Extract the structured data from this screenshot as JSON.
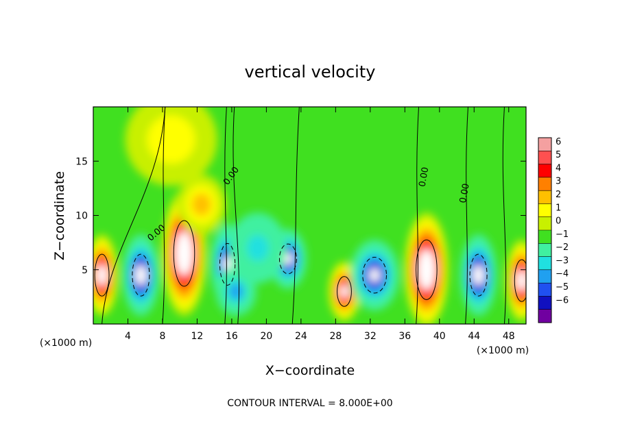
{
  "chart_data": {
    "type": "heatmap",
    "title": "vertical velocity",
    "xlabel": "X−coordinate",
    "ylabel": "Z−coordinate",
    "x_unit_left": "(×1000 m)",
    "x_unit_right": "(×1000 m)",
    "xlim": [
      0,
      50
    ],
    "ylim": [
      0,
      20
    ],
    "x_ticks": [
      4,
      8,
      12,
      16,
      20,
      24,
      28,
      32,
      36,
      40,
      44,
      48
    ],
    "y_ticks": [
      5,
      10,
      15
    ],
    "colorbar": {
      "ticks": [
        6,
        5,
        4,
        3,
        2,
        1,
        0,
        -1,
        -2,
        -3,
        -4,
        -5,
        -6
      ],
      "tick_labels": [
        "6",
        "5",
        "4",
        "3",
        "2",
        "1",
        "0",
        "−1",
        "−2",
        "−3",
        "−4",
        "−5",
        "−6"
      ],
      "colors": [
        "#f4a0a0",
        "#ff5050",
        "#ff0000",
        "#ff8000",
        "#ffc000",
        "#ffff00",
        "#c8f000",
        "#40e020",
        "#40f0a0",
        "#20e0e0",
        "#20a0f0",
        "#2050f0",
        "#1010c0",
        "#7000a0"
      ]
    },
    "contour_labels": [
      "0.00",
      "0.00",
      "0.00",
      "0.00"
    ],
    "field_features": [
      {
        "x": 1,
        "z": 4.5,
        "value": 8,
        "w": 1.5,
        "h": 3.5
      },
      {
        "x": 5.5,
        "z": 4.5,
        "value": -8,
        "w": 1.8,
        "h": 3.5
      },
      {
        "x": 10.5,
        "z": 6.5,
        "value": 10,
        "w": 2.2,
        "h": 5.5
      },
      {
        "x": 12.5,
        "z": 11,
        "value": 3,
        "w": 2.5,
        "h": 2.5
      },
      {
        "x": 15.5,
        "z": 5.5,
        "value": -7,
        "w": 1.6,
        "h": 3.5
      },
      {
        "x": 16.5,
        "z": 3,
        "value": -4,
        "w": 2.0,
        "h": 2.0
      },
      {
        "x": 22.5,
        "z": 6,
        "value": -7,
        "w": 1.8,
        "h": 2.5
      },
      {
        "x": 19,
        "z": 7,
        "value": -2.5,
        "w": 3.0,
        "h": 3.0
      },
      {
        "x": 29,
        "z": 3,
        "value": 7,
        "w": 1.5,
        "h": 2.5
      },
      {
        "x": 32.5,
        "z": 4.5,
        "value": -7,
        "w": 2.5,
        "h": 3.0
      },
      {
        "x": 38.5,
        "z": 5,
        "value": 10,
        "w": 2.2,
        "h": 5.0
      },
      {
        "x": 44.5,
        "z": 4.5,
        "value": -8,
        "w": 1.8,
        "h": 3.5
      },
      {
        "x": 49.5,
        "z": 4,
        "value": 8,
        "w": 1.5,
        "h": 3.5
      },
      {
        "x": 9,
        "z": 17,
        "value": 1.5,
        "w": 5.0,
        "h": 4.0
      }
    ],
    "footer": "CONTOUR INTERVAL = 8.000E+00"
  }
}
